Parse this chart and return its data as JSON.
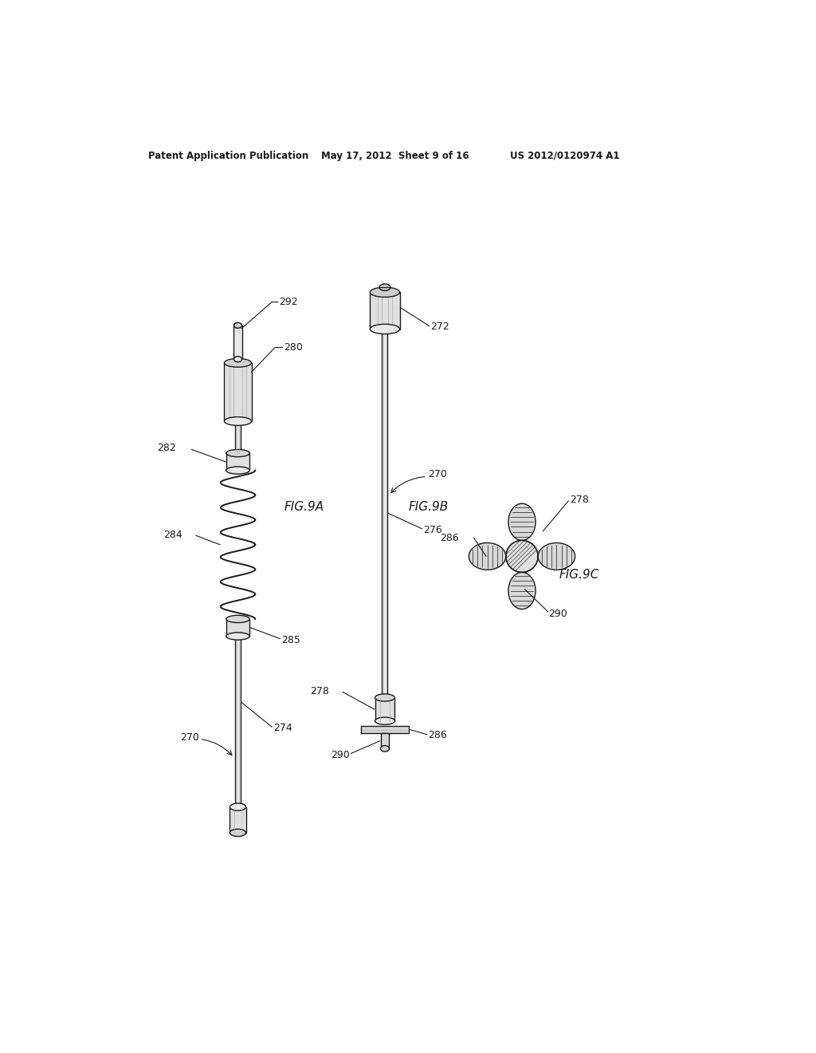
{
  "bg_color": "#ffffff",
  "line_color": "#1a1a1a",
  "header_text": "Patent Application Publication",
  "header_date": "May 17, 2012  Sheet 9 of 16",
  "header_patent": "US 2012/0120974 A1"
}
